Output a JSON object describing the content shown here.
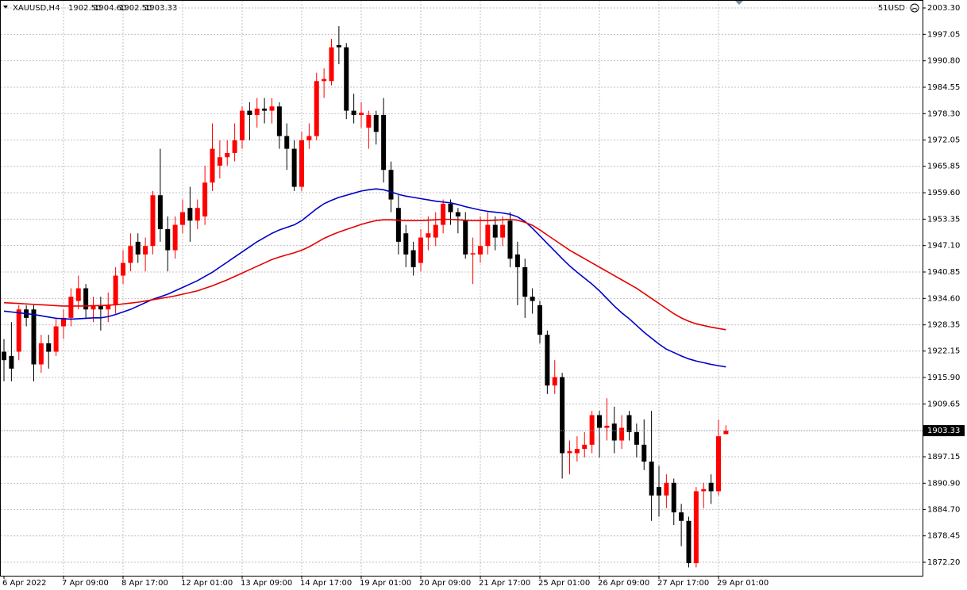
{
  "chart_data": {
    "type": "candlestick",
    "symbol": "XAUUSD,H4",
    "header_values": [
      "1902.50",
      "1904.60",
      "1902.50",
      "1903.33"
    ],
    "account": "51USD",
    "up_color": "#ff0000",
    "down_color": "#000000",
    "grid": true,
    "categories": [
      "6 Apr 2022",
      null,
      null,
      null,
      null,
      null,
      null,
      null,
      "7 Apr 09:00",
      null,
      null,
      null,
      null,
      null,
      null,
      null,
      "8 Apr 17:00",
      null,
      null,
      null,
      null,
      null,
      null,
      null,
      "12 Apr 01:00",
      null,
      null,
      null,
      null,
      null,
      null,
      null,
      "13 Apr 09:00",
      null,
      null,
      null,
      null,
      null,
      null,
      null,
      "14 Apr 17:00",
      null,
      null,
      null,
      null,
      null,
      null,
      null,
      "19 Apr 01:00",
      null,
      null,
      null,
      null,
      null,
      null,
      null,
      "20 Apr 09:00",
      null,
      null,
      null,
      null,
      null,
      null,
      null,
      "21 Apr 17:00",
      null,
      null,
      null,
      null,
      null,
      null,
      null,
      "25 Apr 01:00",
      null,
      null,
      null,
      null,
      null,
      null,
      null,
      "26 Apr 09:00",
      null,
      null,
      null,
      null,
      null,
      null,
      null,
      "27 Apr 17:00",
      null,
      null,
      null,
      null,
      null,
      null,
      null,
      "29 Apr 01:00",
      null
    ],
    "open": [
      1922,
      1921,
      1922,
      1932,
      1932,
      1919,
      1924,
      1922,
      1928,
      1930,
      1934,
      1937,
      1932,
      1933,
      1932,
      1933,
      1940,
      1943,
      1948,
      1945,
      1947,
      1959,
      1951,
      1946,
      1952,
      1956,
      1953,
      1954,
      1962,
      1966,
      1968,
      1969,
      1972,
      1979,
      1978,
      1979.5,
      1979,
      1980,
      1973,
      1970,
      1961,
      1972,
      1973,
      1986,
      1986,
      1994.5,
      1994,
      1979,
      1978,
      1975,
      1978,
      1978,
      1965,
      1956,
      1950,
      1946,
      1943,
      1949,
      1949,
      1952,
      1957,
      1955,
      1953,
      1945,
      1945,
      1947,
      1952,
      1949,
      1953,
      1945,
      1942,
      1935,
      1933,
      1926,
      1914,
      1916,
      1898,
      1898,
      1899,
      1900,
      1907,
      1904,
      1905,
      1901,
      1907,
      1903,
      1900,
      1896,
      1890,
      1888,
      1891,
      1884,
      1882,
      1872,
      1889,
      1891,
      1889,
      1902.5
    ],
    "high": [
      1925,
      1929,
      1933,
      1933,
      1933,
      1926,
      1926,
      1930,
      1932,
      1937,
      1940,
      1938,
      1935,
      1935,
      1936,
      1942,
      1946,
      1950,
      1950,
      1949,
      1960,
      1970,
      1954,
      1954,
      1958,
      1961,
      1958,
      1966,
      1976,
      1972,
      1972,
      1976,
      1980,
      1981,
      1982,
      1982,
      1982,
      1981,
      1976,
      1972,
      1974,
      1976,
      1988,
      1989,
      1996,
      1999,
      1995,
      1983,
      1981,
      1979,
      1979,
      1982,
      1967,
      1959,
      1952,
      1948,
      1951,
      1954,
      1955,
      1958,
      1958,
      1956,
      1955,
      1949,
      1954,
      1955,
      1954,
      1954,
      1955,
      1948,
      1944,
      1937,
      1934,
      1927,
      1920,
      1917,
      1901,
      1902,
      1903,
      1908,
      1908,
      1911,
      1909,
      1907,
      1908,
      1905,
      1906,
      1908,
      1895,
      1893,
      1892,
      1886,
      1883,
      1890,
      1891,
      1893,
      1906,
      1904.6
    ],
    "low": [
      1915,
      1915,
      1920,
      1928,
      1915,
      1917,
      1918,
      1921,
      1925,
      1928,
      1932,
      1930,
      1929,
      1927,
      1929,
      1931,
      1938,
      1941,
      1943,
      1941,
      1945,
      1948,
      1941,
      1944,
      1950,
      1948,
      1951,
      1952,
      1960,
      1963,
      1966,
      1967,
      1970,
      1972,
      1975,
      1976,
      1976,
      1970,
      1965,
      1960,
      1960,
      1970,
      1972,
      1982,
      1985,
      1990,
      1977,
      1976,
      1975,
      1970,
      1971,
      1962,
      1955,
      1945,
      1942,
      1940,
      1941,
      1946,
      1947,
      1950,
      1952,
      1950,
      1944,
      1938,
      1943,
      1945,
      1946,
      1947,
      1942,
      1933,
      1930,
      1931,
      1924,
      1912,
      1912,
      1892,
      1893,
      1896,
      1897,
      1898,
      1897,
      1901,
      1898,
      1899,
      1901,
      1897,
      1894,
      1882,
      1883,
      1885,
      1881,
      1876,
      1871,
      1871,
      1885,
      1886,
      1888,
      1902.5
    ],
    "close": [
      1920,
      1918,
      1932,
      1930,
      1919,
      1924,
      1922,
      1928,
      1930,
      1935,
      1937,
      1932,
      1933,
      1932,
      1933,
      1940,
      1943,
      1947,
      1945,
      1947,
      1959,
      1951,
      1946,
      1952,
      1955,
      1953,
      1956,
      1962,
      1970,
      1968,
      1969,
      1972,
      1979,
      1978,
      1979.5,
      1979,
      1980,
      1973,
      1970,
      1961,
      1972,
      1973,
      1986,
      1986.5,
      1994,
      1994,
      1979,
      1978,
      1978.5,
      1978,
      1974,
      1965,
      1958,
      1948,
      1945,
      1942,
      1949,
      1950,
      1952,
      1957,
      1955,
      1954,
      1945,
      1945.3,
      1947,
      1952,
      1949,
      1952,
      1944,
      1942,
      1935,
      1934,
      1926,
      1914,
      1916,
      1898,
      1898.5,
      1899,
      1900,
      1907,
      1904,
      1904.5,
      1901,
      1904,
      1903,
      1900,
      1896,
      1888,
      1888,
      1891,
      1884,
      1882,
      1872,
      1889,
      1889.5,
      1889,
      1902,
      1903.33
    ],
    "series": [
      {
        "color": "#0000c8",
        "values": [
          1931.6,
          1931.4,
          1931.2,
          1931.0,
          1930.8,
          1930.5,
          1930.2,
          1929.9,
          1929.8,
          1929.7,
          1929.8,
          1929.9,
          1930.0,
          1930.0,
          1930.3,
          1930.8,
          1931.4,
          1932.0,
          1932.8,
          1933.6,
          1934.4,
          1935.0,
          1935.6,
          1936.4,
          1937.2,
          1938.0,
          1938.8,
          1939.8,
          1940.8,
          1942.0,
          1943.2,
          1944.4,
          1945.6,
          1946.8,
          1948.0,
          1949.0,
          1950.0,
          1950.8,
          1951.4,
          1952.0,
          1953.0,
          1954.4,
          1955.8,
          1957.0,
          1957.8,
          1958.5,
          1959.0,
          1959.5,
          1960.0,
          1960.3,
          1960.5,
          1960.3,
          1959.8,
          1959.2,
          1958.8,
          1958.5,
          1958.2,
          1957.9,
          1957.6,
          1957.4,
          1957.2,
          1956.8,
          1956.3,
          1955.9,
          1955.5,
          1955.2,
          1955.0,
          1954.8,
          1954.5,
          1953.9,
          1952.8,
          1951.2,
          1949.4,
          1947.6,
          1945.8,
          1944.0,
          1942.3,
          1940.8,
          1939.4,
          1938.0,
          1936.4,
          1934.6,
          1932.8,
          1931.2,
          1929.8,
          1928.2,
          1926.6,
          1925.2,
          1923.8,
          1922.6,
          1921.8,
          1921.0,
          1920.3,
          1919.8,
          1919.4,
          1919.0,
          1918.7,
          1918.4
        ]
      },
      {
        "color": "#e60000",
        "values": [
          1933.6,
          1933.5,
          1933.4,
          1933.3,
          1933.2,
          1933.1,
          1933.0,
          1932.9,
          1932.8,
          1932.8,
          1932.8,
          1932.8,
          1932.9,
          1932.9,
          1933.0,
          1933.1,
          1933.3,
          1933.5,
          1933.7,
          1934.0,
          1934.3,
          1934.6,
          1934.9,
          1935.2,
          1935.6,
          1936.0,
          1936.4,
          1937.0,
          1937.6,
          1938.3,
          1939.0,
          1939.8,
          1940.6,
          1941.4,
          1942.2,
          1943.0,
          1943.8,
          1944.4,
          1944.9,
          1945.4,
          1946.0,
          1946.8,
          1947.8,
          1948.8,
          1949.6,
          1950.3,
          1950.9,
          1951.5,
          1952.1,
          1952.6,
          1953.0,
          1953.2,
          1953.2,
          1953.1,
          1953.0,
          1953.0,
          1953.0,
          1953.1,
          1953.2,
          1953.3,
          1953.3,
          1953.2,
          1953.1,
          1953.0,
          1953.0,
          1953.0,
          1953.1,
          1953.2,
          1953.3,
          1953.1,
          1952.6,
          1951.9,
          1950.8,
          1949.6,
          1948.4,
          1947.2,
          1946.0,
          1945.0,
          1944.0,
          1943.0,
          1942.0,
          1941.0,
          1940.0,
          1939.0,
          1938.0,
          1937.0,
          1935.8,
          1934.6,
          1933.4,
          1932.2,
          1931.0,
          1930.0,
          1929.2,
          1928.6,
          1928.2,
          1927.8,
          1927.5,
          1927.2
        ]
      }
    ],
    "last_price": {
      "value": 1903.33,
      "label": "1903.33"
    },
    "ylim": [
      1869.02,
      2005.18
    ],
    "yticks": [
      {
        "value": 2003.3,
        "label": "2003.30"
      },
      {
        "value": 1997.05,
        "label": "1997.05"
      },
      {
        "value": 1990.8,
        "label": "1990.80"
      },
      {
        "value": 1984.55,
        "label": "1984.55"
      },
      {
        "value": 1978.3,
        "label": "1978.30"
      },
      {
        "value": 1972.05,
        "label": "1972.05"
      },
      {
        "value": 1965.85,
        "label": "1965.85"
      },
      {
        "value": 1959.6,
        "label": "1959.60"
      },
      {
        "value": 1953.35,
        "label": "1953.35"
      },
      {
        "value": 1947.1,
        "label": "1947.10"
      },
      {
        "value": 1940.85,
        "label": "1940.85"
      },
      {
        "value": 1934.6,
        "label": "1934.60"
      },
      {
        "value": 1928.35,
        "label": "1928.35"
      },
      {
        "value": 1922.15,
        "label": "1922.15"
      },
      {
        "value": 1915.9,
        "label": "1915.90"
      },
      {
        "value": 1909.65,
        "label": "1909.65"
      },
      {
        "value": 1897.15,
        "label": "1897.15"
      },
      {
        "value": 1890.9,
        "label": "1890.90"
      },
      {
        "value": 1884.7,
        "label": "1884.70"
      },
      {
        "value": 1878.45,
        "label": "1878.45"
      },
      {
        "value": 1872.2,
        "label": "1872.20"
      }
    ]
  }
}
